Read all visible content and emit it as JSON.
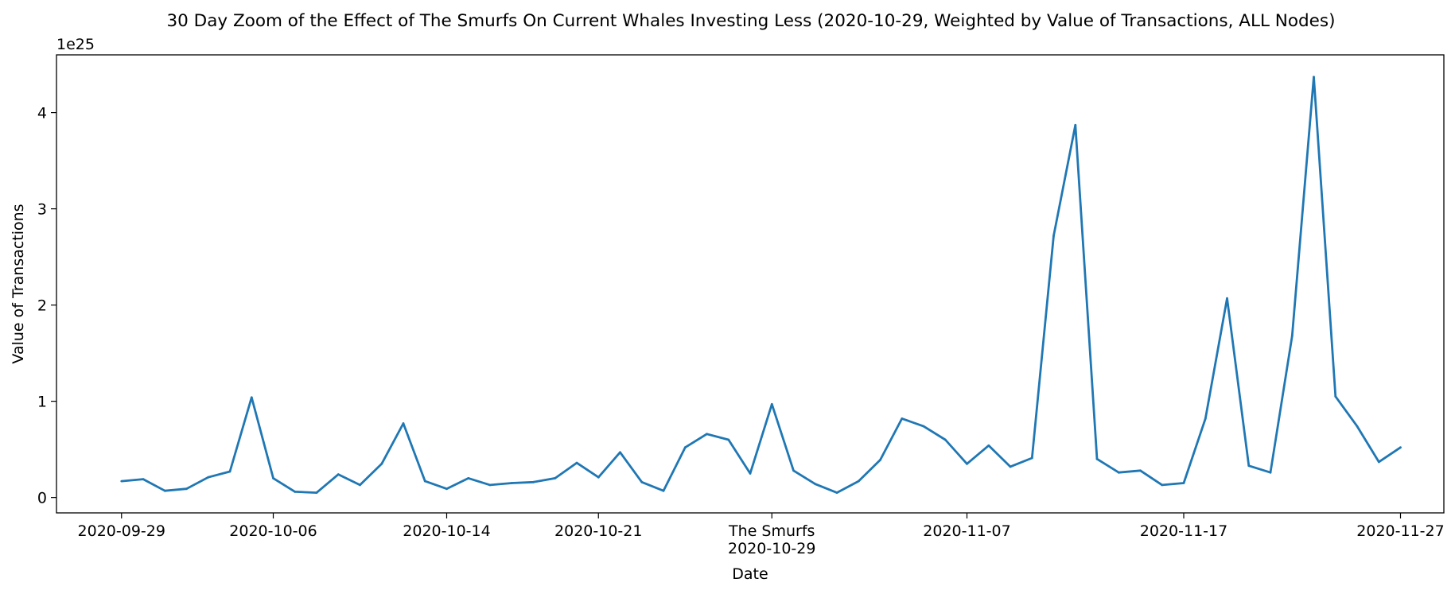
{
  "chart_data": {
    "type": "line",
    "title": "30 Day Zoom of the Effect of The Smurfs On Current Whales Investing Less (2020-10-29, Weighted by Value of Transactions, ALL Nodes)",
    "xlabel": "Date",
    "ylabel": "Value of Transactions",
    "y_offset_label": "1e25",
    "y_scale_factor": 1e+25,
    "ylim": [
      -0.16,
      4.6
    ],
    "xlim": [
      "2020-09-26",
      "2020-11-29"
    ],
    "x_tick_labels": [
      "2020-09-29",
      "2020-10-06",
      "2020-10-14",
      "2020-10-21",
      "The Smurfs\n2020-10-29",
      "2020-11-07",
      "2020-11-17",
      "2020-11-27"
    ],
    "x_tick_dates": [
      "2020-09-29",
      "2020-10-06",
      "2020-10-14",
      "2020-10-21",
      "2020-10-29",
      "2020-11-07",
      "2020-11-17",
      "2020-11-27"
    ],
    "y_ticks": [
      0,
      1,
      2,
      3,
      4
    ],
    "event": {
      "label": "The Smurfs",
      "date": "2020-10-29"
    },
    "grid": false,
    "color": "#1f77b4",
    "series": [
      {
        "x": [
          "2020-09-29",
          "2020-09-30",
          "2020-10-01",
          "2020-10-02",
          "2020-10-03",
          "2020-10-04",
          "2020-10-05",
          "2020-10-06",
          "2020-10-07",
          "2020-10-08",
          "2020-10-09",
          "2020-10-10",
          "2020-10-11",
          "2020-10-12",
          "2020-10-13",
          "2020-10-14",
          "2020-10-15",
          "2020-10-16",
          "2020-10-17",
          "2020-10-18",
          "2020-10-19",
          "2020-10-20",
          "2020-10-21",
          "2020-10-22",
          "2020-10-23",
          "2020-10-24",
          "2020-10-25",
          "2020-10-26",
          "2020-10-27",
          "2020-10-28",
          "2020-10-29",
          "2020-10-30",
          "2020-10-31",
          "2020-11-01",
          "2020-11-02",
          "2020-11-03",
          "2020-11-04",
          "2020-11-05",
          "2020-11-06",
          "2020-11-07",
          "2020-11-08",
          "2020-11-09",
          "2020-11-10",
          "2020-11-11",
          "2020-11-12",
          "2020-11-13",
          "2020-11-14",
          "2020-11-15",
          "2020-11-16",
          "2020-11-17",
          "2020-11-18",
          "2020-11-19",
          "2020-11-20",
          "2020-11-21",
          "2020-11-22",
          "2020-11-23",
          "2020-11-24",
          "2020-11-25",
          "2020-11-26",
          "2020-11-27"
        ],
        "values": [
          0.17,
          0.19,
          0.07,
          0.09,
          0.21,
          0.27,
          1.04,
          0.2,
          0.06,
          0.05,
          0.24,
          0.13,
          0.35,
          0.77,
          0.17,
          0.09,
          0.2,
          0.13,
          0.15,
          0.16,
          0.2,
          0.36,
          0.21,
          0.47,
          0.16,
          0.07,
          0.52,
          0.66,
          0.6,
          0.25,
          0.97,
          0.28,
          0.14,
          0.05,
          0.17,
          0.39,
          0.82,
          0.74,
          0.6,
          0.35,
          0.54,
          0.32,
          0.41,
          2.72,
          3.87,
          0.4,
          0.26,
          0.28,
          0.13,
          0.15,
          0.82,
          2.07,
          0.33,
          0.26,
          1.68,
          4.37,
          1.05,
          0.74,
          0.37,
          0.52
        ]
      }
    ]
  }
}
